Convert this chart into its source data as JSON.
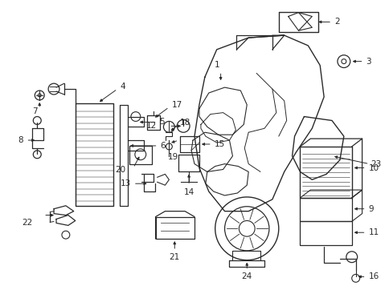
{
  "bg_color": "#ffffff",
  "line_color": "#2a2a2a",
  "label_color": "#111111",
  "figsize": [
    4.85,
    3.57
  ],
  "dpi": 100,
  "lw": 0.9,
  "label_fs": 7.5
}
